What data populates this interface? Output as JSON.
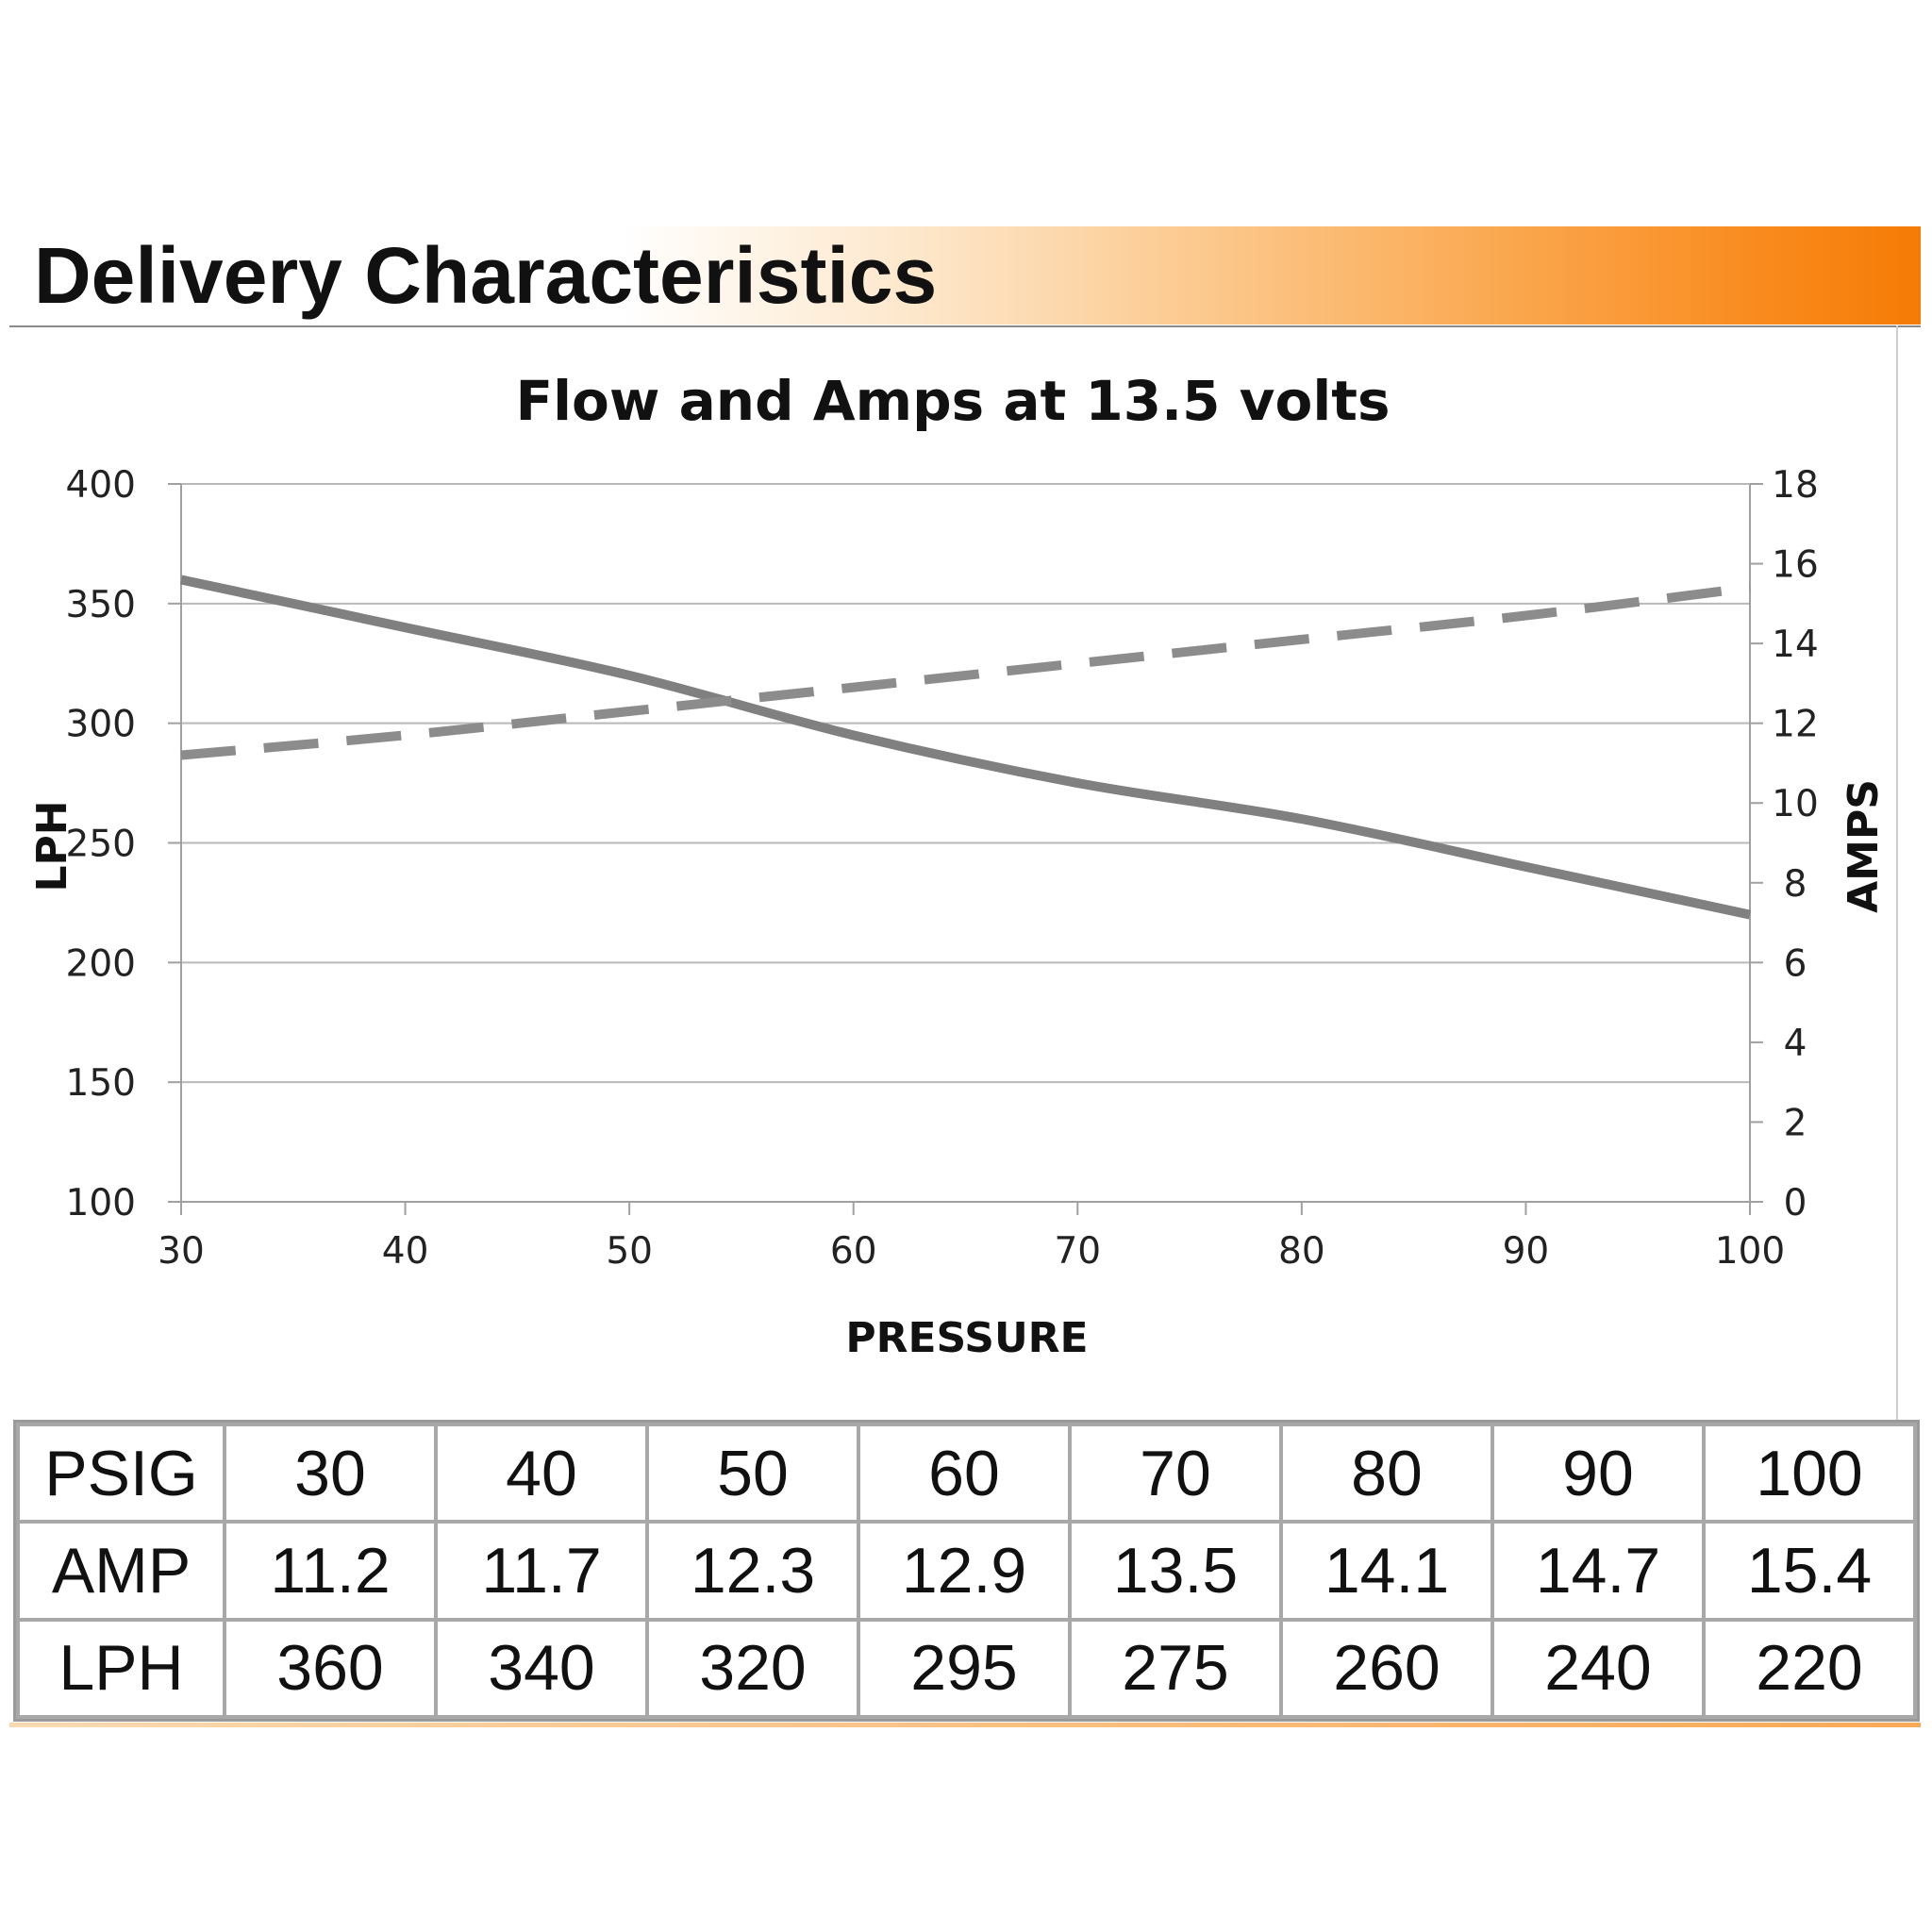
{
  "header": {
    "title": "Delivery Characteristics"
  },
  "chart_data": {
    "type": "line",
    "title": "Flow and Amps at 13.5 volts",
    "xlabel": "PRESSURE",
    "ylabel": "LPH",
    "y2label": "AMPS",
    "xlim": [
      30,
      100
    ],
    "ylim": [
      100,
      400
    ],
    "y2lim": [
      0,
      18
    ],
    "x_ticks": [
      30,
      40,
      50,
      60,
      70,
      80,
      90,
      100
    ],
    "y_ticks": [
      100,
      150,
      200,
      250,
      300,
      350,
      400
    ],
    "y2_ticks": [
      0,
      2,
      4,
      6,
      8,
      10,
      12,
      14,
      16,
      18
    ],
    "grid": true,
    "x": [
      30,
      40,
      50,
      60,
      70,
      80,
      90,
      100
    ],
    "series": [
      {
        "values": [
          360,
          340,
          320,
          295,
          275,
          260,
          240,
          220
        ],
        "axis": "left",
        "style": "solid",
        "color": "#808080"
      },
      {
        "values": [
          11.2,
          11.7,
          12.3,
          12.9,
          13.5,
          14.1,
          14.7,
          15.4
        ],
        "axis": "right",
        "style": "dashed",
        "color": "#8c8c8c"
      }
    ]
  },
  "table": {
    "rows": [
      {
        "label": "PSIG",
        "values": [
          "30",
          "40",
          "50",
          "60",
          "70",
          "80",
          "90",
          "100"
        ]
      },
      {
        "label": "AMP",
        "values": [
          "11.2",
          "11.7",
          "12.3",
          "12.9",
          "13.5",
          "14.1",
          "14.7",
          "15.4"
        ]
      },
      {
        "label": "LPH",
        "values": [
          "360",
          "340",
          "320",
          "295",
          "275",
          "260",
          "240",
          "220"
        ]
      }
    ]
  }
}
